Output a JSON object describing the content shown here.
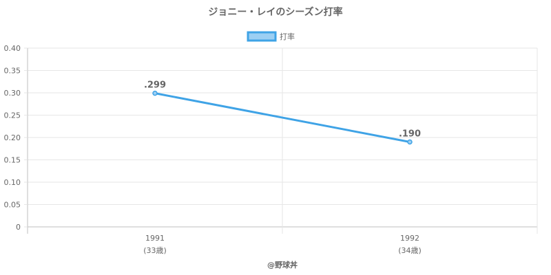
{
  "chart_data": {
    "type": "line",
    "title": "ジョニー・レイのシーズン打率",
    "categories": [
      "1991",
      "1992"
    ],
    "category_sublabels": [
      "(33歳)",
      "(34歳)"
    ],
    "series": [
      {
        "name": "打率",
        "values": [
          0.299,
          0.19
        ],
        "data_labels": [
          ".299",
          ".190"
        ],
        "color": "#3fa3e6"
      }
    ],
    "ylim": [
      0,
      0.4
    ],
    "yticks": [
      "0",
      "0.05",
      "0.10",
      "0.15",
      "0.20",
      "0.25",
      "0.30",
      "0.35",
      "0.40"
    ],
    "ytick_values": [
      0,
      0.05,
      0.1,
      0.15,
      0.2,
      0.25,
      0.3,
      0.35,
      0.4
    ],
    "grid": true,
    "legend_position": "top-center"
  },
  "credit": "@野球丼",
  "colors": {
    "line": "#3fa3e6",
    "legend_fill": "#9ccff3",
    "grid": "#e6e6e6",
    "axis": "#bfbfbf",
    "text": "#666666"
  }
}
